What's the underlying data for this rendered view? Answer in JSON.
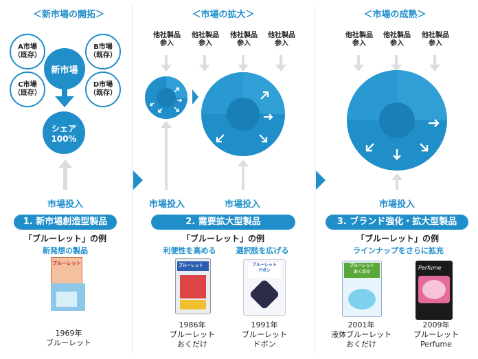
{
  "stages": [
    {
      "title": "＜新市場の開拓＞",
      "markets": [
        "A市場\n（既存）",
        "B市場\n（既存）",
        "C市場\n（既存）",
        "D市場\n（既存）"
      ],
      "center": "新市場",
      "share": "シェア\n100%",
      "invest": "市場投入",
      "pill": "1. 新市場創造型製品",
      "example": "「ブルーレット」の例",
      "subs": [
        "新発想の製品"
      ],
      "products": [
        {
          "caption": "1969年\nブルーレット"
        }
      ]
    },
    {
      "title": "＜市場の拡大＞",
      "entrants": [
        "他社製品\n参入",
        "他社製品\n参入",
        "他社製品\n参入",
        "他社製品\n参入"
      ],
      "invest_left": "市場投入",
      "invest_right": "市場投入",
      "pill": "2. 需要拡大型製品",
      "example": "「ブルーレット」の例",
      "subs": [
        "利便性を高める",
        "選択肢を広げる"
      ],
      "products": [
        {
          "caption": "1986年\nブルーレット\nおくだけ"
        },
        {
          "caption": "1991年\nブルーレット\nドボン"
        }
      ]
    },
    {
      "title": "＜市場の成熟＞",
      "entrants": [
        "他社製品\n参入",
        "他社製品\n参入",
        "他社製品\n参入"
      ],
      "invest": "市場投入",
      "pill": "3. ブランド強化・拡大型製品",
      "example": "「ブルーレット」の例",
      "subs": [
        "ラインナップをさらに拡充"
      ],
      "products": [
        {
          "caption": "2001年\n液体ブルーレット\nおくだけ"
        },
        {
          "caption": "2009年\nブルーレット\nPerfume"
        }
      ]
    }
  ],
  "product_label_text": {
    "p1": "ブルーレット",
    "p2": "ブルーレット",
    "p3": "ブルーレット\nドボン",
    "p4": "ブルーレット\nおくだけ",
    "p5": "Perfume"
  },
  "colors": {
    "accent": "#1f8ec9",
    "light": "#7fc1e6",
    "arrow_gray": "#dddddd"
  }
}
